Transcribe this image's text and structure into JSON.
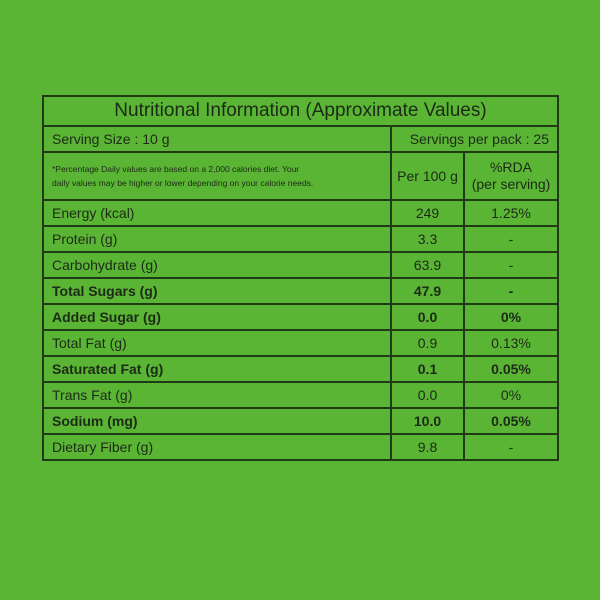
{
  "title": "Nutritional Information (Approximate Values)",
  "serving_size": "Serving Size : 10 g",
  "servings_per_pack": "Servings per pack : 25",
  "note": [
    "*Percentage Daily values are based on a 2,000 calories diet. Your",
    "daily values may be higher or lower depending on your calorie needs."
  ],
  "headers": {
    "per_100g": "Per 100 g",
    "rda": [
      "%RDA",
      "(per serving)"
    ]
  },
  "rows": [
    [
      "Energy (kcal)",
      "249",
      "1.25%"
    ],
    [
      "Protein (g)",
      "3.3",
      "-"
    ],
    [
      "Carbohydrate (g)",
      "63.9",
      "-"
    ],
    [
      "Total Sugars (g)",
      "47.9",
      "-"
    ],
    [
      "Added Sugar (g)",
      "0.0",
      "0%"
    ],
    [
      "Total Fat (g)",
      "0.9",
      "0.13%"
    ],
    [
      "Saturated Fat (g)",
      "0.1",
      "0.05%"
    ],
    [
      "Trans Fat (g)",
      "0.0",
      "0%"
    ],
    [
      "Sodium (mg)",
      "10.0",
      "0.05%"
    ],
    [
      "Dietary Fiber (g)",
      "9.8",
      "-"
    ]
  ]
}
